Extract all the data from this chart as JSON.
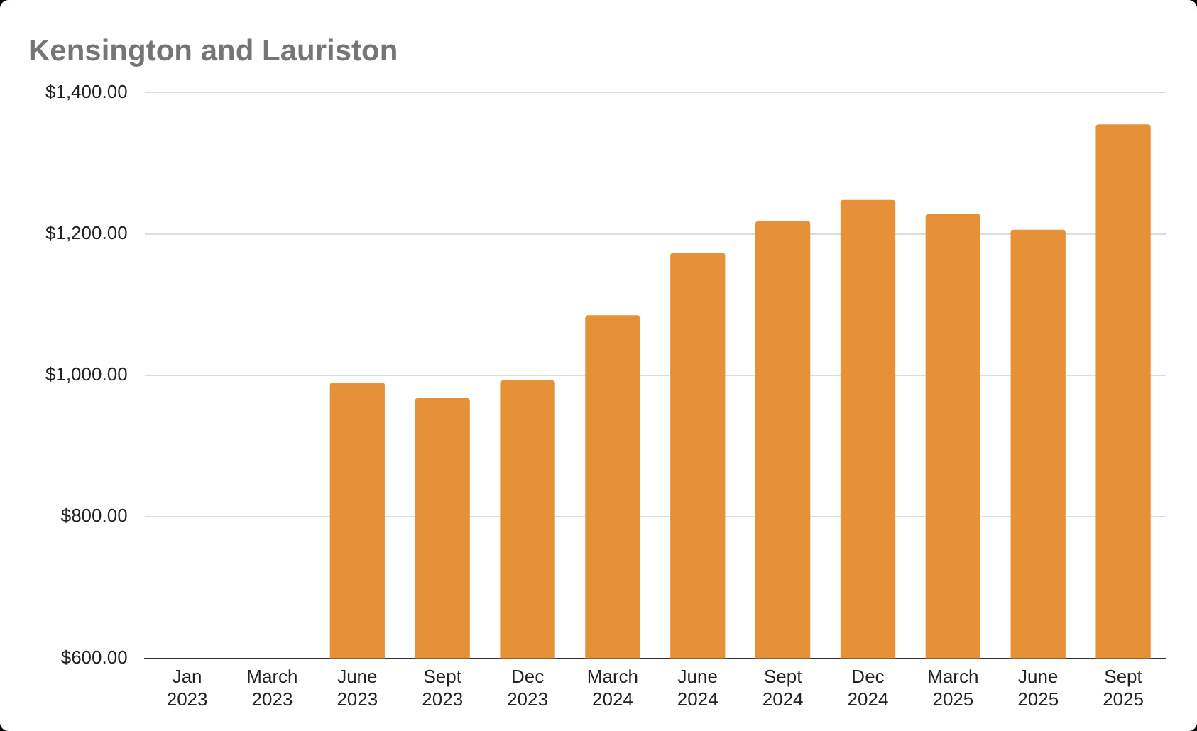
{
  "chart_data": {
    "type": "bar",
    "title": "Kensington and Lauriston",
    "categories": [
      "Jan 2023",
      "March 2023",
      "June 2023",
      "Sept 2023",
      "Dec 2023",
      "March 2024",
      "June 2024",
      "Sept 2024",
      "Dec 2024",
      "March 2025",
      "June 2025",
      "Sept 2025"
    ],
    "values": [
      null,
      null,
      990,
      968,
      993,
      1085,
      1173,
      1218,
      1248,
      1228,
      1206,
      1355
    ],
    "color": "#e69138",
    "ylim": [
      600,
      1400
    ],
    "yticks": [
      {
        "value": 600,
        "label": "$600.00"
      },
      {
        "value": 800,
        "label": "$800.00"
      },
      {
        "value": 1000,
        "label": "$1,000.00"
      },
      {
        "value": 1200,
        "label": "$1,200.00"
      },
      {
        "value": 1400,
        "label": "$1,400.00"
      }
    ],
    "grid": "y"
  }
}
